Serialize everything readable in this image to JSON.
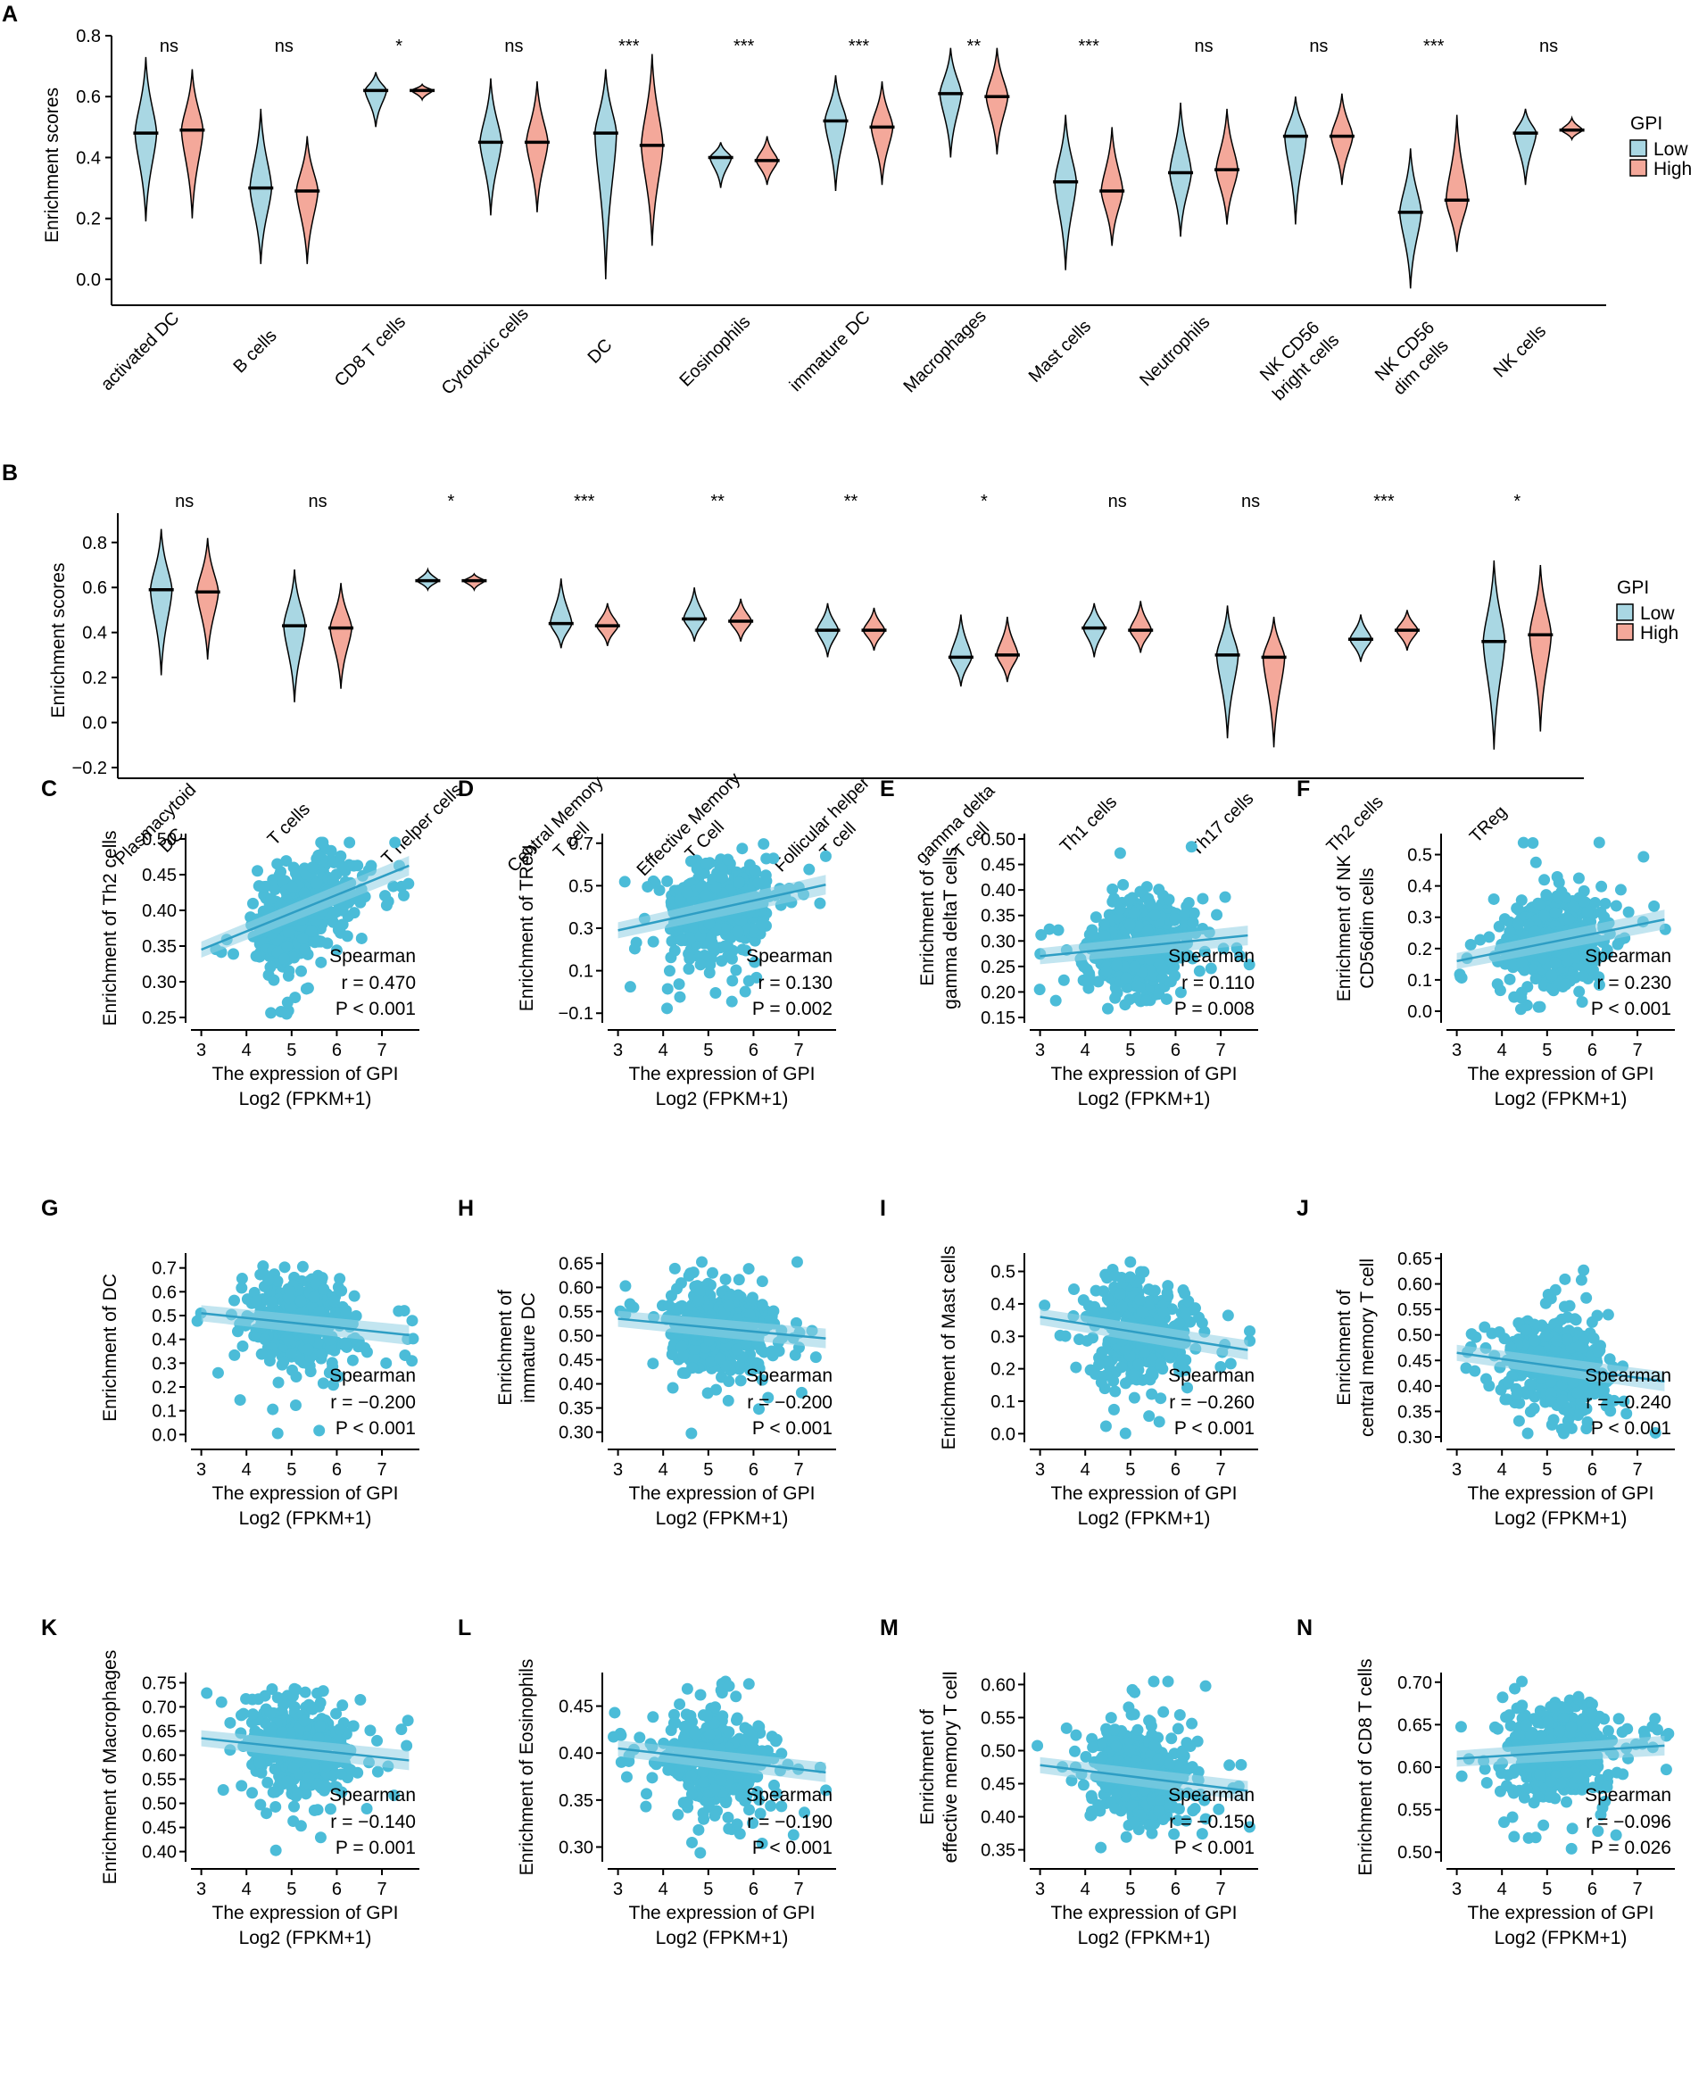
{
  "colors": {
    "low": "#a9d7e3",
    "high": "#f4a89a",
    "scatter": "#4bbcd8",
    "line": "#2e9ec4"
  },
  "legend": {
    "title": "GPI",
    "low": "Low",
    "high": "High"
  },
  "chart_data": [
    {
      "panel": "A",
      "type": "violin",
      "ylabel": "Enrichment scores",
      "ylim": [
        -0.05,
        0.8
      ],
      "yticks": [
        "0.0",
        "0.2",
        "0.4",
        "0.6",
        "0.8"
      ],
      "categories": [
        "activated DC",
        "B cells",
        "CD8 T cells",
        "Cytotoxic cells",
        "DC",
        "Eosinophils",
        "immature DC",
        "Macrophages",
        "Mast cells",
        "Neutrophils",
        "NK CD56 bright cells",
        "NK CD56 dim cells",
        "NK cells"
      ],
      "significance": [
        "ns",
        "ns",
        "*",
        "ns",
        "***",
        "***",
        "***",
        "**",
        "***",
        "ns",
        "ns",
        "***",
        "ns"
      ],
      "series": [
        {
          "name": "Low",
          "median": [
            0.48,
            0.3,
            0.62,
            0.45,
            0.48,
            0.4,
            0.52,
            0.61,
            0.32,
            0.35,
            0.47,
            0.22,
            0.48
          ],
          "min": [
            0.19,
            0.05,
            0.5,
            0.21,
            0.0,
            0.3,
            0.29,
            0.4,
            0.03,
            0.14,
            0.18,
            -0.03,
            0.31
          ],
          "max": [
            0.73,
            0.56,
            0.68,
            0.66,
            0.69,
            0.45,
            0.67,
            0.76,
            0.54,
            0.58,
            0.6,
            0.43,
            0.56
          ]
        },
        {
          "name": "High",
          "median": [
            0.49,
            0.29,
            0.62,
            0.45,
            0.44,
            0.39,
            0.5,
            0.6,
            0.29,
            0.36,
            0.47,
            0.26,
            0.49
          ],
          "min": [
            0.2,
            0.05,
            0.59,
            0.22,
            0.11,
            0.31,
            0.31,
            0.41,
            0.11,
            0.18,
            0.31,
            0.09,
            0.46
          ],
          "max": [
            0.69,
            0.47,
            0.64,
            0.65,
            0.74,
            0.47,
            0.65,
            0.76,
            0.5,
            0.56,
            0.61,
            0.54,
            0.53
          ]
        }
      ]
    },
    {
      "panel": "B",
      "type": "violin",
      "ylabel": "Enrichment scores",
      "ylim": [
        -0.2,
        0.93
      ],
      "yticks": [
        "−0.2",
        "0.0",
        "0.2",
        "0.4",
        "0.6",
        "0.8"
      ],
      "categories": [
        "Plasmacytoid DC",
        "T cells",
        "T helper cells",
        "Central Memory T cell",
        "Effective Memory T Cell",
        "Follicular helper T cell",
        "gamma delta T cell",
        "Th1 cells",
        "Th17 cells",
        "Th2 cells",
        "TReg"
      ],
      "significance": [
        "ns",
        "ns",
        "*",
        "***",
        "**",
        "**",
        "*",
        "ns",
        "ns",
        "***",
        "*"
      ],
      "series": [
        {
          "name": "Low",
          "median": [
            0.59,
            0.43,
            0.63,
            0.44,
            0.46,
            0.41,
            0.29,
            0.42,
            0.3,
            0.37,
            0.36
          ],
          "min": [
            0.21,
            0.09,
            0.59,
            0.33,
            0.36,
            0.29,
            0.16,
            0.29,
            -0.07,
            0.27,
            -0.12
          ],
          "max": [
            0.86,
            0.68,
            0.68,
            0.64,
            0.6,
            0.53,
            0.48,
            0.53,
            0.52,
            0.48,
            0.72
          ]
        },
        {
          "name": "High",
          "median": [
            0.58,
            0.42,
            0.63,
            0.43,
            0.45,
            0.41,
            0.3,
            0.41,
            0.29,
            0.41,
            0.39
          ],
          "min": [
            0.28,
            0.15,
            0.59,
            0.34,
            0.36,
            0.32,
            0.18,
            0.31,
            -0.11,
            0.32,
            -0.04
          ],
          "max": [
            0.82,
            0.62,
            0.66,
            0.53,
            0.55,
            0.51,
            0.47,
            0.54,
            0.47,
            0.5,
            0.7
          ]
        }
      ]
    },
    {
      "panel": "C",
      "type": "scatter",
      "ylabel": [
        "Enrichment of Th2 cells"
      ],
      "yticks": [
        "0.25",
        "0.30",
        "0.35",
        "0.40",
        "0.45",
        "0.50"
      ],
      "ylim": [
        0.25,
        0.5
      ],
      "xlim": [
        2.85,
        7.75
      ],
      "xticks": [
        "3",
        "4",
        "5",
        "6",
        "7"
      ],
      "xlabel": [
        "The expression of GPI",
        "Log2 (FPKM+1)"
      ],
      "fit": [
        0.345,
        0.46
      ],
      "spearman": "Spearman",
      "r": "r = 0.470",
      "p": "P < 0.001"
    },
    {
      "panel": "D",
      "type": "scatter",
      "ylabel": [
        "Enrichment of TReg"
      ],
      "yticks": [
        "−0.1",
        "0.1",
        "0.3",
        "0.5",
        "0.7"
      ],
      "ylim": [
        -0.12,
        0.72
      ],
      "xlim": [
        2.85,
        7.75
      ],
      "xticks": [
        "3",
        "4",
        "5",
        "6",
        "7"
      ],
      "xlabel": [
        "The expression of GPI",
        "Log2 (FPKM+1)"
      ],
      "fit": [
        0.29,
        0.5
      ],
      "spearman": "Spearman",
      "r": "r = 0.130",
      "p": "P = 0.002"
    },
    {
      "panel": "E",
      "type": "scatter",
      "ylabel": [
        "Enrichment of",
        "gamma deltaT cells"
      ],
      "yticks": [
        "0.15",
        "0.20",
        "0.25",
        "0.30",
        "0.35",
        "0.40",
        "0.45",
        "0.50"
      ],
      "ylim": [
        0.15,
        0.5
      ],
      "xlim": [
        2.85,
        7.75
      ],
      "xticks": [
        "3",
        "4",
        "5",
        "6",
        "7"
      ],
      "xlabel": [
        "The expression of GPI",
        "Log2 (FPKM+1)"
      ],
      "fit": [
        0.27,
        0.31
      ],
      "spearman": "Spearman",
      "r": "r = 0.110",
      "p": "P = 0.008"
    },
    {
      "panel": "F",
      "type": "scatter",
      "ylabel": [
        "Enrichment of NK",
        "CD56dim cells"
      ],
      "yticks": [
        "0.0",
        "0.1",
        "0.2",
        "0.3",
        "0.4",
        "0.5"
      ],
      "ylim": [
        -0.02,
        0.55
      ],
      "xlim": [
        2.85,
        7.75
      ],
      "xticks": [
        "3",
        "4",
        "5",
        "6",
        "7"
      ],
      "xlabel": [
        "The expression of GPI",
        "Log2 (FPKM+1)"
      ],
      "fit": [
        0.16,
        0.29
      ],
      "spearman": "Spearman",
      "r": "r = 0.230",
      "p": "P < 0.001"
    },
    {
      "panel": "G",
      "type": "scatter",
      "ylabel": [
        "Enrichment of DC"
      ],
      "yticks": [
        "0.0",
        "0.1",
        "0.2",
        "0.3",
        "0.4",
        "0.5",
        "0.6",
        "0.7"
      ],
      "ylim": [
        -0.01,
        0.74
      ],
      "xlim": [
        2.85,
        7.75
      ],
      "xticks": [
        "3",
        "4",
        "5",
        "6",
        "7"
      ],
      "xlabel": [
        "The expression of GPI",
        "Log2 (FPKM+1)"
      ],
      "fit": [
        0.51,
        0.42
      ],
      "spearman": "Spearman",
      "r": "r = −0.200",
      "p": "P < 0.001"
    },
    {
      "panel": "H",
      "type": "scatter",
      "ylabel": [
        "Enrichment of",
        "immature DC"
      ],
      "yticks": [
        "0.30",
        "0.35",
        "0.40",
        "0.45",
        "0.50",
        "0.55",
        "0.60",
        "0.65"
      ],
      "ylim": [
        0.29,
        0.66
      ],
      "xlim": [
        2.85,
        7.75
      ],
      "xticks": [
        "3",
        "4",
        "5",
        "6",
        "7"
      ],
      "xlabel": [
        "The expression of GPI",
        "Log2 (FPKM+1)"
      ],
      "fit": [
        0.535,
        0.495
      ],
      "spearman": "Spearman",
      "r": "r = −0.200",
      "p": "P < 0.001"
    },
    {
      "panel": "I",
      "type": "scatter",
      "ylabel": [
        "Enrichment of Mast cells"
      ],
      "yticks": [
        "0.0",
        "0.1",
        "0.2",
        "0.3",
        "0.4",
        "0.5"
      ],
      "ylim": [
        -0.01,
        0.54
      ],
      "xlim": [
        2.85,
        7.75
      ],
      "xticks": [
        "3",
        "4",
        "5",
        "6",
        "7"
      ],
      "xlabel": [
        "The expression of GPI",
        "Log2 (FPKM+1)"
      ],
      "fit": [
        0.36,
        0.26
      ],
      "spearman": "Spearman",
      "r": "r = −0.260",
      "p": "P < 0.001"
    },
    {
      "panel": "J",
      "type": "scatter",
      "ylabel": [
        "Enrichment of",
        "central memory T cell"
      ],
      "yticks": [
        "0.30",
        "0.35",
        "0.40",
        "0.45",
        "0.50",
        "0.55",
        "0.60",
        "0.65"
      ],
      "ylim": [
        0.3,
        0.65
      ],
      "xlim": [
        2.85,
        7.75
      ],
      "xticks": [
        "3",
        "4",
        "5",
        "6",
        "7"
      ],
      "xlabel": [
        "The expression of GPI",
        "Log2 (FPKM+1)"
      ],
      "fit": [
        0.465,
        0.41
      ],
      "spearman": "Spearman",
      "r": "r = −0.240",
      "p": "P < 0.001"
    },
    {
      "panel": "K",
      "type": "scatter",
      "ylabel": [
        "Enrichment of Macrophages"
      ],
      "yticks": [
        "0.40",
        "0.45",
        "0.50",
        "0.55",
        "0.60",
        "0.65",
        "0.70",
        "0.75"
      ],
      "ylim": [
        0.39,
        0.76
      ],
      "xlim": [
        2.85,
        7.75
      ],
      "xticks": [
        "3",
        "4",
        "5",
        "6",
        "7"
      ],
      "xlabel": [
        "The expression of GPI",
        "Log2 (FPKM+1)"
      ],
      "fit": [
        0.635,
        0.59
      ],
      "spearman": "Spearman",
      "r": "r = −0.140",
      "p": "P = 0.001"
    },
    {
      "panel": "L",
      "type": "scatter",
      "ylabel": [
        "Enrichment of Eosinophils"
      ],
      "yticks": [
        "0.30",
        "0.35",
        "0.40",
        "0.45"
      ],
      "ylim": [
        0.29,
        0.48
      ],
      "xlim": [
        2.85,
        7.75
      ],
      "xticks": [
        "3",
        "4",
        "5",
        "6",
        "7"
      ],
      "xlabel": [
        "The expression of GPI",
        "Log2 (FPKM+1)"
      ],
      "fit": [
        0.405,
        0.38
      ],
      "spearman": "Spearman",
      "r": "r = −0.190",
      "p": "P < 0.001"
    },
    {
      "panel": "M",
      "type": "scatter",
      "ylabel": [
        "Enrichment of",
        "effective memory T cell"
      ],
      "yticks": [
        "0.35",
        "0.40",
        "0.45",
        "0.50",
        "0.55",
        "0.60"
      ],
      "ylim": [
        0.34,
        0.61
      ],
      "xlim": [
        2.85,
        7.75
      ],
      "xticks": [
        "3",
        "4",
        "5",
        "6",
        "7"
      ],
      "xlabel": [
        "The expression of GPI",
        "Log2 (FPKM+1)"
      ],
      "fit": [
        0.478,
        0.44
      ],
      "spearman": "Spearman",
      "r": "r = −0.150",
      "p": "P < 0.001"
    },
    {
      "panel": "N",
      "type": "scatter",
      "ylabel": [
        "Enrichment of CD8 T cells"
      ],
      "yticks": [
        "0.50",
        "0.55",
        "0.60",
        "0.65",
        "0.70"
      ],
      "ylim": [
        0.495,
        0.705
      ],
      "xlim": [
        2.85,
        7.75
      ],
      "xticks": [
        "3",
        "4",
        "5",
        "6",
        "7"
      ],
      "xlabel": [
        "The expression of GPI",
        "Log2 (FPKM+1)"
      ],
      "fit": [
        0.61,
        0.625
      ],
      "spearman": "Spearman",
      "r": "r = −0.096",
      "p": "P = 0.026"
    }
  ]
}
